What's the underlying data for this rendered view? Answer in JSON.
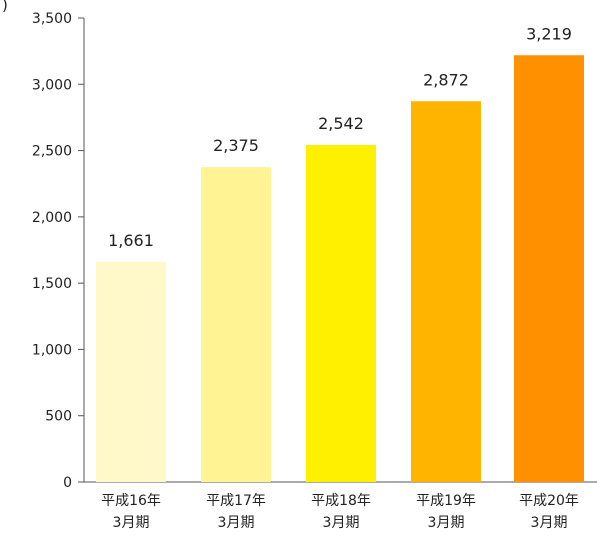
{
  "chart_data": {
    "type": "bar",
    "ylabel_partial": ")",
    "ylim": [
      0,
      3500
    ],
    "yticks": [
      0,
      500,
      1000,
      1500,
      2000,
      2500,
      3000,
      3500
    ],
    "ytick_labels": [
      "0",
      "500",
      "1,000",
      "1,500",
      "2,000",
      "2,500",
      "3,000",
      "3,500"
    ],
    "categories": [
      [
        "平成16年",
        "3月期"
      ],
      [
        "平成17年",
        "3月期"
      ],
      [
        "平成18年",
        "3月期"
      ],
      [
        "平成19年",
        "3月期"
      ],
      [
        "平成20年",
        "3月期"
      ]
    ],
    "values": [
      1661,
      2375,
      2542,
      2872,
      3219
    ],
    "value_labels": [
      "1,661",
      "2,375",
      "2,542",
      "2,872",
      "3,219"
    ],
    "colors": [
      "#fff8c8",
      "#fff394",
      "#fff000",
      "#ffb400",
      "#ff9000"
    ],
    "grid": false
  }
}
